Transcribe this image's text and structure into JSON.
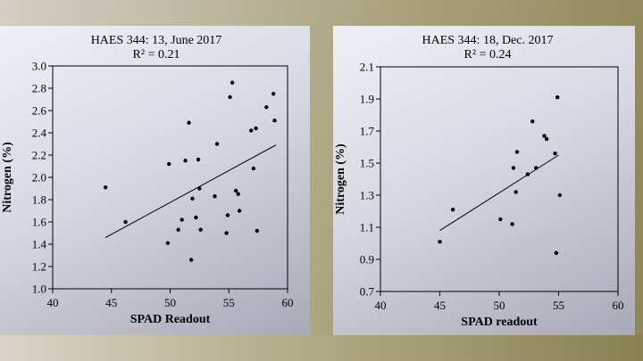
{
  "chart_data": [
    {
      "type": "scatter",
      "title": "HAES 344: 13, June 2017",
      "subtitle": "R² = 0.21",
      "xlabel": "SPAD Readout",
      "ylabel": "Nitrogen (%)",
      "xlim": [
        40,
        60
      ],
      "ylim": [
        1.0,
        3.0
      ],
      "xticks": [
        "40",
        "45",
        "50",
        "55",
        "60"
      ],
      "yticks": [
        "1.0",
        "1.2",
        "1.4",
        "1.6",
        "1.8",
        "2.0",
        "2.2",
        "2.4",
        "2.6",
        "2.8",
        "3.0"
      ],
      "grid": false,
      "points": [
        [
          44.5,
          1.91
        ],
        [
          46.2,
          1.6
        ],
        [
          49.8,
          1.41
        ],
        [
          49.9,
          2.12
        ],
        [
          50.7,
          1.53
        ],
        [
          51.0,
          1.62
        ],
        [
          51.3,
          2.15
        ],
        [
          51.6,
          2.49
        ],
        [
          51.8,
          1.26
        ],
        [
          51.9,
          1.81
        ],
        [
          52.2,
          1.64
        ],
        [
          52.4,
          2.16
        ],
        [
          52.5,
          1.9
        ],
        [
          52.6,
          1.53
        ],
        [
          53.8,
          1.83
        ],
        [
          54.0,
          2.3
        ],
        [
          54.8,
          1.5
        ],
        [
          54.9,
          1.66
        ],
        [
          55.1,
          2.72
        ],
        [
          55.3,
          2.85
        ],
        [
          55.6,
          1.88
        ],
        [
          55.8,
          1.85
        ],
        [
          55.9,
          1.7
        ],
        [
          56.9,
          2.42
        ],
        [
          57.1,
          2.08
        ],
        [
          57.3,
          2.44
        ],
        [
          57.4,
          1.52
        ],
        [
          58.2,
          2.63
        ],
        [
          58.8,
          2.75
        ],
        [
          58.9,
          2.51
        ]
      ],
      "trendline": [
        [
          44.5,
          1.46
        ],
        [
          59.0,
          2.29
        ]
      ]
    },
    {
      "type": "scatter",
      "title": "HAES 344: 18, Dec. 2017",
      "subtitle": "R² = 0.24",
      "xlabel": "SPAD readout",
      "ylabel": "Nitrogen (%)",
      "xlim": [
        40,
        60
      ],
      "ylim": [
        0.7,
        2.1
      ],
      "xticks": [
        "40",
        "45",
        "50",
        "55",
        "60"
      ],
      "yticks": [
        "0.7",
        "0.9",
        "1.1",
        "1.3",
        "1.5",
        "1.7",
        "1.9",
        "2.1"
      ],
      "grid": false,
      "points": [
        [
          45.0,
          1.01
        ],
        [
          46.1,
          1.21
        ],
        [
          50.1,
          1.15
        ],
        [
          51.1,
          1.12
        ],
        [
          51.2,
          1.47
        ],
        [
          51.4,
          1.32
        ],
        [
          51.5,
          1.57
        ],
        [
          52.4,
          1.43
        ],
        [
          52.8,
          1.76
        ],
        [
          53.1,
          1.47
        ],
        [
          53.8,
          1.67
        ],
        [
          54.0,
          1.65
        ],
        [
          54.7,
          1.56
        ],
        [
          54.8,
          0.94
        ],
        [
          54.9,
          1.91
        ],
        [
          55.1,
          1.3
        ]
      ],
      "trendline": [
        [
          45.0,
          1.08
        ],
        [
          55.0,
          1.55
        ]
      ]
    }
  ]
}
